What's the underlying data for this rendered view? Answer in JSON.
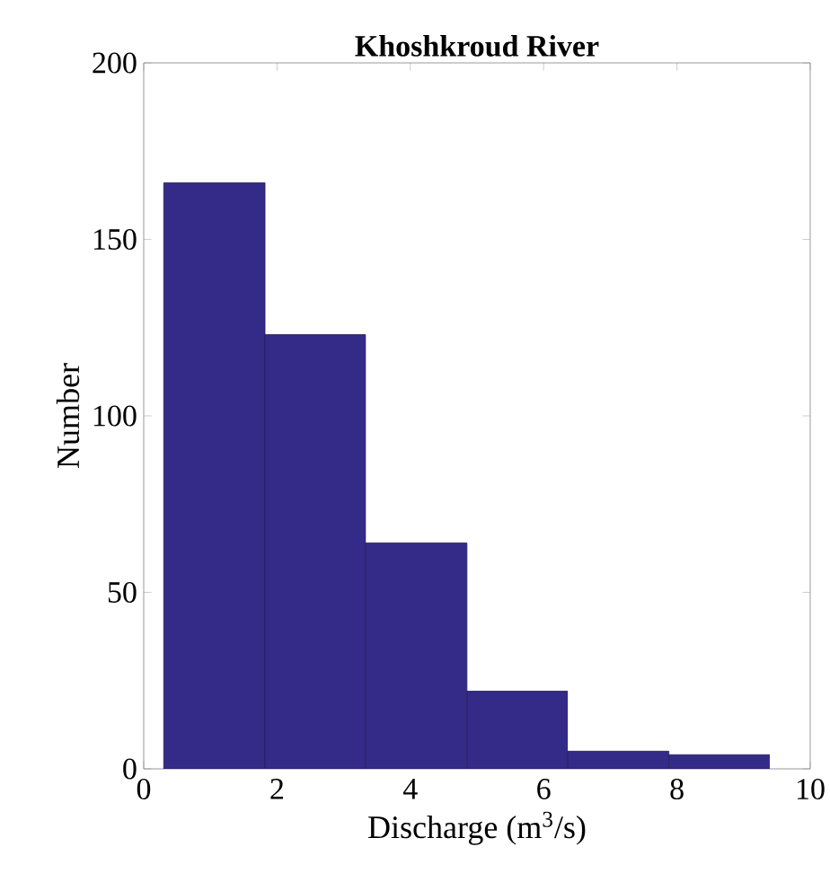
{
  "chart_data": {
    "type": "histogram",
    "title": "Khoshkroud River",
    "xlabel": "Discharge (m$^{3}$/s)",
    "ylabel": "Number",
    "bins": [
      0.3,
      1.82,
      3.33,
      4.85,
      6.36,
      7.88,
      9.39
    ],
    "values": [
      166,
      123,
      64,
      22,
      5,
      4
    ],
    "color": "#342a87",
    "xlim": [
      0,
      10
    ],
    "xticks": [
      0,
      2,
      4,
      6,
      8,
      10
    ],
    "ylim": [
      0,
      200
    ],
    "yticks": [
      0,
      50,
      100,
      150,
      200
    ],
    "grid": false
  }
}
